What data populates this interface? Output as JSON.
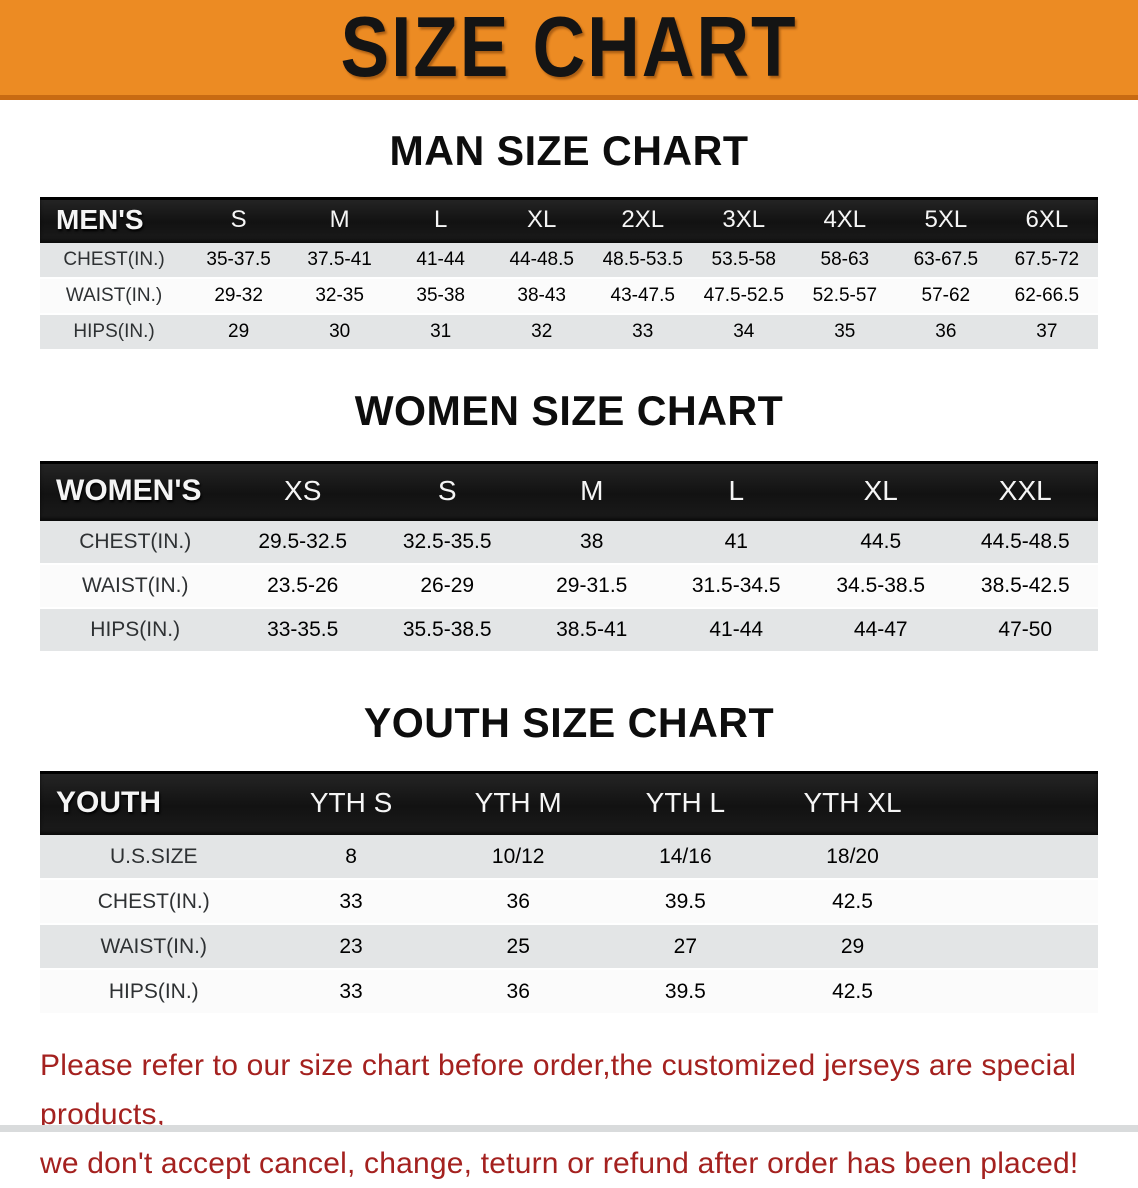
{
  "banner": {
    "title": "SIZE CHART",
    "bg_color": "#ec8b23",
    "text_color": "#141414"
  },
  "sections": [
    {
      "heading": "MAN SIZE CHART",
      "table": {
        "header": [
          "MEN'S",
          "S",
          "M",
          "L",
          "XL",
          "2XL",
          "3XL",
          "4XL",
          "5XL",
          "6XL"
        ],
        "rows": [
          {
            "label": "CHEST(IN.)",
            "values": [
              "35-37.5",
              "37.5-41",
              "41-44",
              "44-48.5",
              "48.5-53.5",
              "53.5-58",
              "58-63",
              "63-67.5",
              "67.5-72"
            ]
          },
          {
            "label": "WAIST(IN.)",
            "values": [
              "29-32",
              "32-35",
              "35-38",
              "38-43",
              "43-47.5",
              "47.5-52.5",
              "52.5-57",
              "57-62",
              "62-66.5"
            ]
          },
          {
            "label": "HIPS(IN.)",
            "values": [
              "29",
              "30",
              "31",
              "32",
              "33",
              "34",
              "35",
              "36",
              "37"
            ]
          }
        ]
      }
    },
    {
      "heading": "WOMEN SIZE CHART",
      "table": {
        "header": [
          "WOMEN'S",
          "XS",
          "S",
          "M",
          "L",
          "XL",
          "XXL"
        ],
        "rows": [
          {
            "label": "CHEST(IN.)",
            "values": [
              "29.5-32.5",
              "32.5-35.5",
              "38",
              "41",
              "44.5",
              "44.5-48.5"
            ]
          },
          {
            "label": "WAIST(IN.)",
            "values": [
              "23.5-26",
              "26-29",
              "29-31.5",
              "31.5-34.5",
              "34.5-38.5",
              "38.5-42.5"
            ]
          },
          {
            "label": "HIPS(IN.)",
            "values": [
              "33-35.5",
              "35.5-38.5",
              "38.5-41",
              "41-44",
              "44-47",
              "47-50"
            ]
          }
        ]
      }
    },
    {
      "heading": "YOUTH SIZE CHART",
      "table": {
        "header": [
          "YOUTH",
          "YTH S",
          "YTH M",
          "YTH L",
          "YTH XL"
        ],
        "rows": [
          {
            "label": "U.S.SIZE",
            "values": [
              "8",
              "10/12",
              "14/16",
              "18/20"
            ]
          },
          {
            "label": "CHEST(IN.)",
            "values": [
              "33",
              "36",
              "39.5",
              "42.5"
            ]
          },
          {
            "label": "WAIST(IN.)",
            "values": [
              "23",
              "25",
              "27",
              "29"
            ]
          },
          {
            "label": "HIPS(IN.)",
            "values": [
              "33",
              "36",
              "39.5",
              "42.5"
            ]
          }
        ]
      }
    }
  ],
  "notice": {
    "line1": "Please refer to our size chart before order,the customized jerseys are special products,",
    "line2": "we don't accept cancel, change, teturn or refund after order has been placed!",
    "color": "#a4211f"
  },
  "colors": {
    "header_bar": "#1a1a1a",
    "stripe_gray": "#e3e5e6",
    "banner_orange": "#ec8b23"
  }
}
